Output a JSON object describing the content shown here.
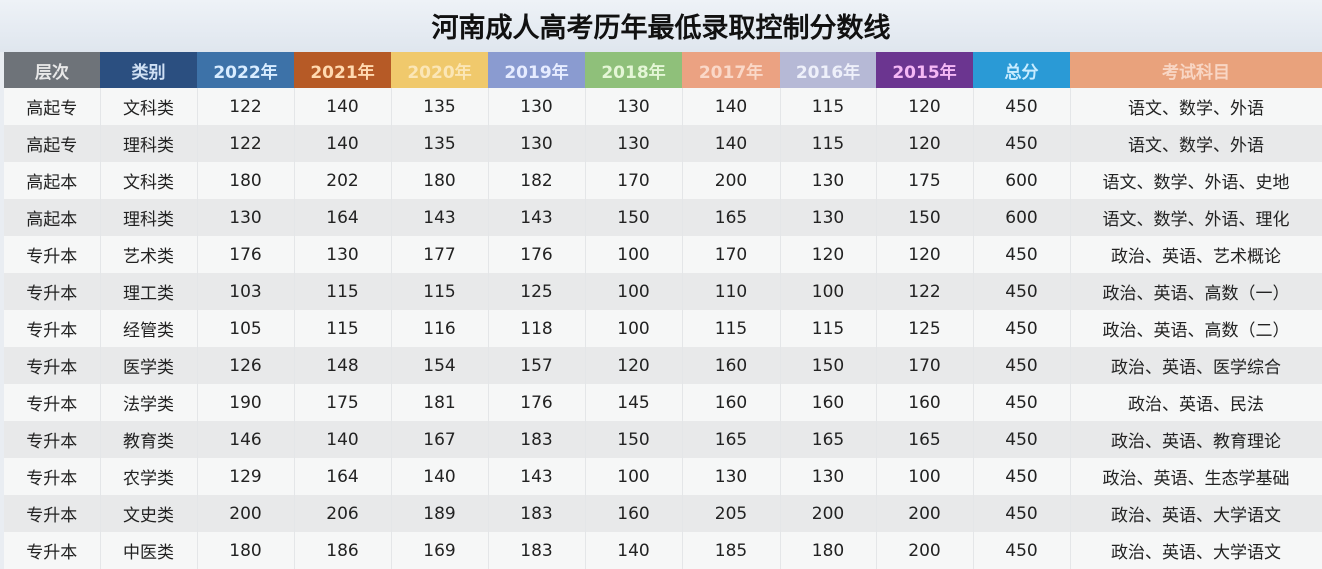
{
  "title": "河南成人高考历年最低录取控制分数线",
  "headers": [
    {
      "label": "层次",
      "bg": "#6e7379",
      "fg": "#e8e8e8"
    },
    {
      "label": "类别",
      "bg": "#2b4f80",
      "fg": "#cfe0f4"
    },
    {
      "label": "2022年",
      "bg": "#3d72a8",
      "fg": "#d8ecff"
    },
    {
      "label": "2021年",
      "bg": "#b65a26",
      "fg": "#ffd9b0"
    },
    {
      "label": "2020年",
      "bg": "#f0c96c",
      "fg": "#fbe6b6"
    },
    {
      "label": "2019年",
      "bg": "#8a9bd0",
      "fg": "#e6ecff"
    },
    {
      "label": "2018年",
      "bg": "#8fc07a",
      "fg": "#e4f6d6"
    },
    {
      "label": "2017年",
      "bg": "#eba282",
      "fg": "#fad8c8"
    },
    {
      "label": "2016年",
      "bg": "#b6b9d6",
      "fg": "#eef0fa"
    },
    {
      "label": "2015年",
      "bg": "#6b3590",
      "fg": "#f5b8f5"
    },
    {
      "label": "总分",
      "bg": "#2a9ad6",
      "fg": "#c8ecff"
    },
    {
      "label": "考试科目",
      "bg": "#e9a27c",
      "fg": "#f8d6c4"
    }
  ],
  "rows": [
    [
      "高起专",
      "文科类",
      "122",
      "140",
      "135",
      "130",
      "130",
      "140",
      "115",
      "120",
      "450",
      "语文、数学、外语"
    ],
    [
      "高起专",
      "理科类",
      "122",
      "140",
      "135",
      "130",
      "130",
      "140",
      "115",
      "120",
      "450",
      "语文、数学、外语"
    ],
    [
      "高起本",
      "文科类",
      "180",
      "202",
      "180",
      "182",
      "170",
      "200",
      "130",
      "175",
      "600",
      "语文、数学、外语、史地"
    ],
    [
      "高起本",
      "理科类",
      "130",
      "164",
      "143",
      "143",
      "150",
      "165",
      "130",
      "150",
      "600",
      "语文、数学、外语、理化"
    ],
    [
      "专升本",
      "艺术类",
      "176",
      "130",
      "177",
      "176",
      "100",
      "170",
      "120",
      "120",
      "450",
      "政治、英语、艺术概论"
    ],
    [
      "专升本",
      "理工类",
      "103",
      "115",
      "115",
      "125",
      "100",
      "110",
      "100",
      "122",
      "450",
      "政治、英语、高数（一）"
    ],
    [
      "专升本",
      "经管类",
      "105",
      "115",
      "116",
      "118",
      "100",
      "115",
      "115",
      "125",
      "450",
      "政治、英语、高数（二）"
    ],
    [
      "专升本",
      "医学类",
      "126",
      "148",
      "154",
      "157",
      "120",
      "160",
      "150",
      "170",
      "450",
      "政治、英语、医学综合"
    ],
    [
      "专升本",
      "法学类",
      "190",
      "175",
      "181",
      "176",
      "145",
      "160",
      "160",
      "160",
      "450",
      "政治、英语、民法"
    ],
    [
      "专升本",
      "教育类",
      "146",
      "140",
      "167",
      "183",
      "150",
      "165",
      "165",
      "165",
      "450",
      "政治、英语、教育理论"
    ],
    [
      "专升本",
      "农学类",
      "129",
      "164",
      "140",
      "143",
      "100",
      "130",
      "130",
      "100",
      "450",
      "政治、英语、生态学基础"
    ],
    [
      "专升本",
      "文史类",
      "200",
      "206",
      "189",
      "183",
      "160",
      "205",
      "200",
      "200",
      "450",
      "政治、英语、大学语文"
    ],
    [
      "专升本",
      "中医类",
      "180",
      "186",
      "169",
      "183",
      "140",
      "185",
      "180",
      "200",
      "450",
      "政治、英语、大学语文"
    ]
  ]
}
